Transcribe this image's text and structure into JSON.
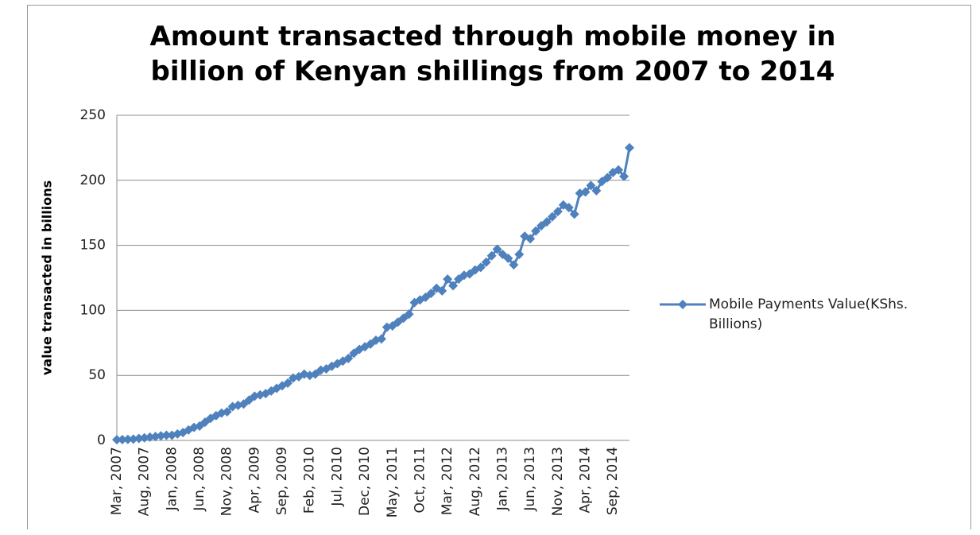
{
  "chart_data": {
    "type": "line",
    "title": "Amount transacted through mobile money in billion of Kenyan shillings from 2007 to 2014",
    "y_label": "value transacted in billions",
    "categories": [
      "Mar, 2007",
      null,
      null,
      null,
      null,
      "Aug, 2007",
      null,
      null,
      null,
      null,
      "Jan, 2008",
      null,
      null,
      null,
      null,
      "Jun, 2008",
      null,
      null,
      null,
      null,
      "Nov, 2008",
      null,
      null,
      null,
      null,
      "Apr, 2009",
      null,
      null,
      null,
      null,
      "Sep, 2009",
      null,
      null,
      null,
      null,
      "Feb, 2010",
      null,
      null,
      null,
      null,
      "Jul, 2010",
      null,
      null,
      null,
      null,
      "Dec, 2010",
      null,
      null,
      null,
      null,
      "May, 2011",
      null,
      null,
      null,
      null,
      "Oct, 2011",
      null,
      null,
      null,
      null,
      "Mar, 2012",
      null,
      null,
      null,
      null,
      "Aug, 2012",
      null,
      null,
      null,
      null,
      "Jan, 2013",
      null,
      null,
      null,
      null,
      "Jun, 2013",
      null,
      null,
      null,
      null,
      "Nov, 2013",
      null,
      null,
      null,
      null,
      "Apr, 2014",
      null,
      null,
      null,
      null,
      "Sep, 2014",
      null,
      null,
      null
    ],
    "series": [
      {
        "name": "Mobile Payments Value(KShs. Billions)",
        "color": "#4f81bd",
        "values": [
          0.5,
          0.6,
          0.8,
          1,
          1.5,
          2,
          2.5,
          3,
          3.5,
          4,
          4,
          5,
          6,
          8,
          10,
          11,
          14,
          17,
          19,
          21,
          22,
          26,
          27,
          28,
          31,
          34,
          35,
          36,
          38,
          40,
          42,
          44,
          48,
          49,
          51,
          50,
          51,
          54,
          55,
          57,
          59,
          61,
          63,
          67,
          70,
          72,
          74,
          77,
          78,
          87,
          88,
          91,
          94,
          97,
          106,
          108,
          110,
          113,
          117,
          115,
          124,
          119,
          124,
          127,
          128,
          131,
          133,
          137,
          142,
          147,
          143,
          140,
          135,
          143,
          157,
          155,
          161,
          165,
          168,
          172,
          176,
          181,
          179,
          174,
          190,
          191,
          196,
          192,
          199,
          202,
          206,
          208,
          203,
          225
        ]
      }
    ],
    "ylim": [
      0,
      250
    ],
    "yticks": [
      0,
      50,
      100,
      150,
      200,
      250
    ],
    "grid": true,
    "legend": "right"
  }
}
